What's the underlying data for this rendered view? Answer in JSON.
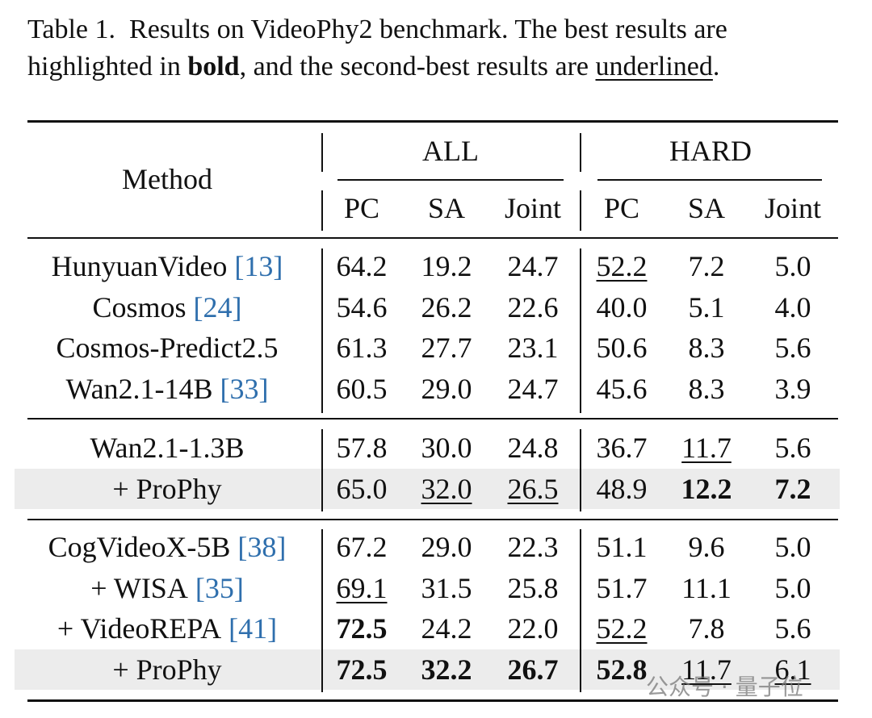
{
  "caption": {
    "label": "Table 1.",
    "text1": "Results on VideoPhy2 benchmark.  The best results are highlighted in",
    "bold": "bold",
    "text2": ", and the second-best results are",
    "underline": "underlined",
    "end": "."
  },
  "table": {
    "method_header": "Method",
    "groups": [
      "ALL",
      "HARD"
    ],
    "columns": [
      "PC",
      "SA",
      "Joint",
      "PC",
      "SA",
      "Joint"
    ],
    "sections": [
      [
        {
          "method": "HunyuanVideo",
          "cite": "[13]",
          "cells": [
            "64.2",
            "19.2",
            "24.7",
            "52.2",
            "7.2",
            "5.0"
          ],
          "underline": [
            3
          ]
        },
        {
          "method": "Cosmos",
          "cite": "[24]",
          "cells": [
            "54.6",
            "26.2",
            "22.6",
            "40.0",
            "5.1",
            "4.0"
          ]
        },
        {
          "method": "Cosmos-Predict2.5",
          "cells": [
            "61.3",
            "27.7",
            "23.1",
            "50.6",
            "8.3",
            "5.6"
          ]
        },
        {
          "method": "Wan2.1-14B",
          "cite": "[33]",
          "cells": [
            "60.5",
            "29.0",
            "24.7",
            "45.6",
            "8.3",
            "3.9"
          ]
        }
      ],
      [
        {
          "method": "Wan2.1-1.3B",
          "cells": [
            "57.8",
            "30.0",
            "24.8",
            "36.7",
            "11.7",
            "5.6"
          ],
          "underline": [
            4
          ]
        },
        {
          "method": "+ ProPhy",
          "cells": [
            "65.0",
            "32.0",
            "26.5",
            "48.9",
            "12.2",
            "7.2"
          ],
          "underline": [
            1,
            2
          ],
          "bold": [
            4,
            5
          ],
          "highlight": true
        }
      ],
      [
        {
          "method": "CogVideoX-5B",
          "cite": "[38]",
          "cells": [
            "67.2",
            "29.0",
            "22.3",
            "51.1",
            "9.6",
            "5.0"
          ]
        },
        {
          "method": "+ WISA",
          "cite": "[35]",
          "cells": [
            "69.1",
            "31.5",
            "25.8",
            "51.7",
            "11.1",
            "5.0"
          ],
          "underline": [
            0
          ]
        },
        {
          "method": "+ VideoREPA",
          "cite": "[41]",
          "cells": [
            "72.5",
            "24.2",
            "22.0",
            "52.2",
            "7.8",
            "5.6"
          ],
          "bold": [
            0
          ],
          "underline": [
            3
          ]
        },
        {
          "method": "+ ProPhy",
          "cells": [
            "72.5",
            "32.2",
            "26.7",
            "52.8",
            "11.7",
            "6.1"
          ],
          "bold": [
            0,
            1,
            2,
            3
          ],
          "underline": [
            4,
            5
          ],
          "highlight": true
        }
      ]
    ]
  },
  "watermark": "公众号 · 量子位"
}
